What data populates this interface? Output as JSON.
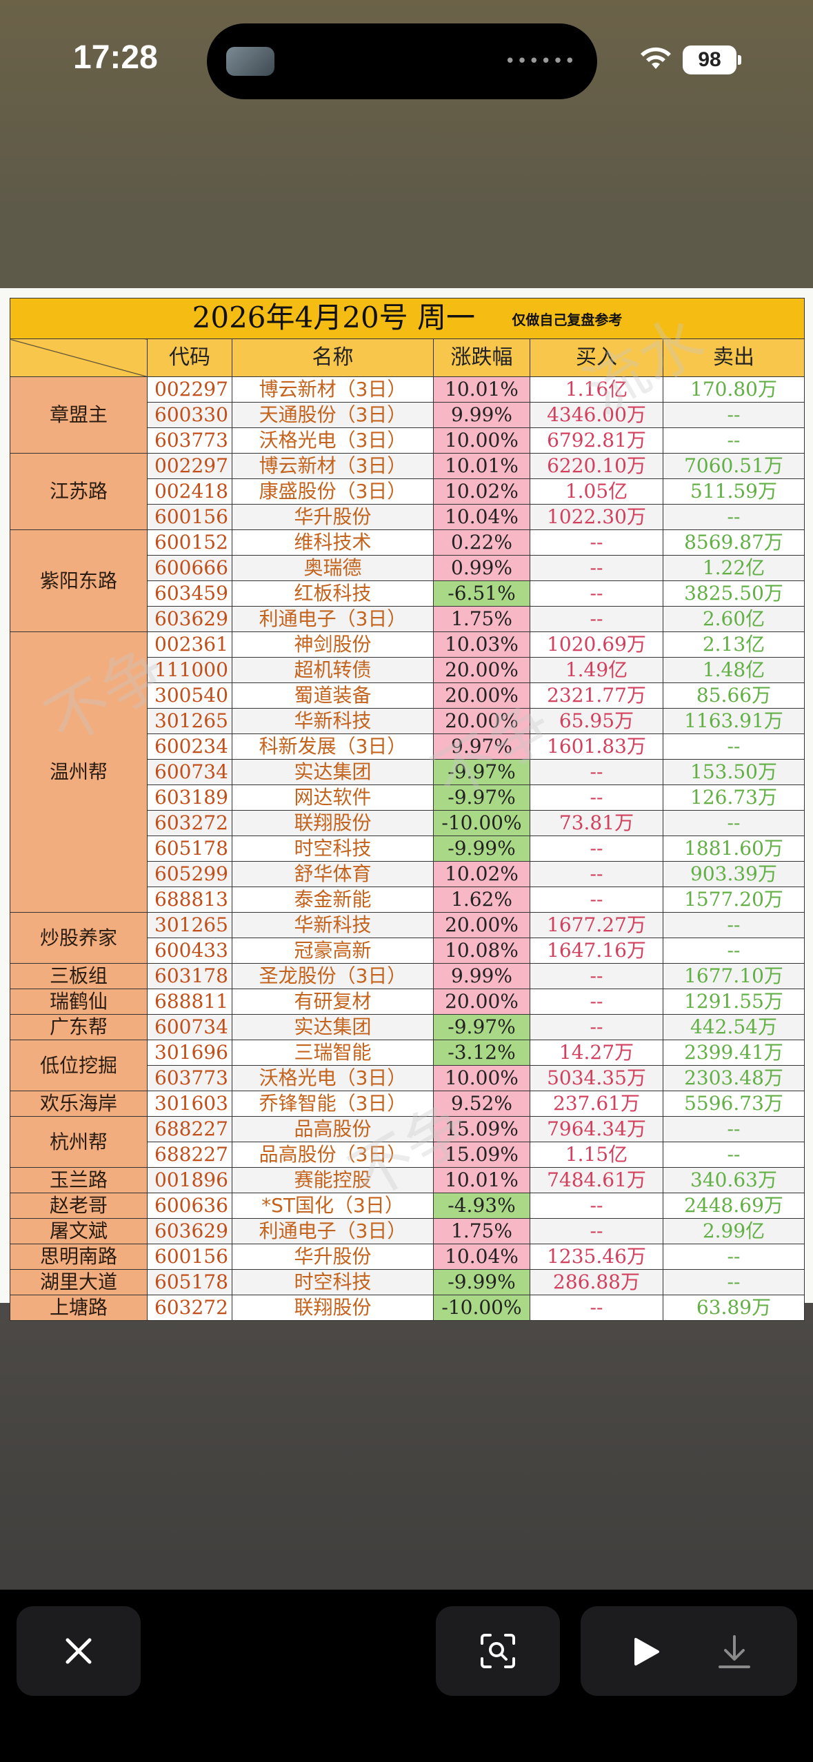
{
  "status_bar": {
    "time": "17:28",
    "battery": "98"
  },
  "sheet": {
    "title": "2026年4月20号 周一",
    "note": "仅做自己复盘参考",
    "headers": [
      "代码",
      "名称",
      "涨跌幅",
      "买入",
      "卖出"
    ]
  },
  "groups": [
    {
      "name": "章盟主",
      "rows": [
        {
          "code": "002297",
          "name": "博云新材（3日）",
          "pct": "10.01%",
          "dir": "up",
          "buy": "1.16亿",
          "sell": "170.80万"
        },
        {
          "code": "600330",
          "name": "天通股份（3日）",
          "pct": "9.99%",
          "dir": "up",
          "buy": "4346.00万",
          "sell": "--"
        },
        {
          "code": "603773",
          "name": "沃格光电（3日）",
          "pct": "10.00%",
          "dir": "up",
          "buy": "6792.81万",
          "sell": "--"
        }
      ]
    },
    {
      "name": "江苏路",
      "rows": [
        {
          "code": "002297",
          "name": "博云新材（3日）",
          "pct": "10.01%",
          "dir": "up",
          "buy": "6220.10万",
          "sell": "7060.51万"
        },
        {
          "code": "002418",
          "name": "康盛股份（3日）",
          "pct": "10.02%",
          "dir": "up",
          "buy": "1.05亿",
          "sell": "511.59万"
        },
        {
          "code": "600156",
          "name": "华升股份",
          "pct": "10.04%",
          "dir": "up",
          "buy": "1022.30万",
          "sell": "--"
        }
      ]
    },
    {
      "name": "紫阳东路",
      "rows": [
        {
          "code": "600152",
          "name": "维科技术",
          "pct": "0.22%",
          "dir": "up",
          "buy": "--",
          "sell": "8569.87万"
        },
        {
          "code": "600666",
          "name": "奥瑞德",
          "pct": "0.99%",
          "dir": "up",
          "buy": "--",
          "sell": "1.22亿"
        },
        {
          "code": "603459",
          "name": "红板科技",
          "pct": "-6.51%",
          "dir": "down",
          "buy": "--",
          "sell": "3825.50万"
        },
        {
          "code": "603629",
          "name": "利通电子（3日）",
          "pct": "1.75%",
          "dir": "up",
          "buy": "--",
          "sell": "2.60亿"
        }
      ]
    },
    {
      "name": "温州帮",
      "rows": [
        {
          "code": "002361",
          "name": "神剑股份",
          "pct": "10.03%",
          "dir": "up",
          "buy": "1020.69万",
          "sell": "2.13亿"
        },
        {
          "code": "111000",
          "name": "超机转债",
          "pct": "20.00%",
          "dir": "up",
          "buy": "1.49亿",
          "sell": "1.48亿"
        },
        {
          "code": "300540",
          "name": "蜀道装备",
          "pct": "20.00%",
          "dir": "up",
          "buy": "2321.77万",
          "sell": "85.66万"
        },
        {
          "code": "301265",
          "name": "华新科技",
          "pct": "20.00%",
          "dir": "up",
          "buy": "65.95万",
          "sell": "1163.91万"
        },
        {
          "code": "600234",
          "name": "科新发展（3日）",
          "pct": "9.97%",
          "dir": "up",
          "buy": "1601.83万",
          "sell": "--"
        },
        {
          "code": "600734",
          "name": "实达集团",
          "pct": "-9.97%",
          "dir": "down",
          "buy": "--",
          "sell": "153.50万"
        },
        {
          "code": "603189",
          "name": "网达软件",
          "pct": "-9.97%",
          "dir": "down",
          "buy": "--",
          "sell": "126.73万"
        },
        {
          "code": "603272",
          "name": "联翔股份",
          "pct": "-10.00%",
          "dir": "down",
          "buy": "73.81万",
          "sell": "--"
        },
        {
          "code": "605178",
          "name": "时空科技",
          "pct": "-9.99%",
          "dir": "down",
          "buy": "--",
          "sell": "1881.60万"
        },
        {
          "code": "605299",
          "name": "舒华体育",
          "pct": "10.02%",
          "dir": "up",
          "buy": "--",
          "sell": "903.39万"
        },
        {
          "code": "688813",
          "name": "泰金新能",
          "pct": "1.62%",
          "dir": "up",
          "buy": "--",
          "sell": "1577.20万"
        }
      ]
    },
    {
      "name": "炒股养家",
      "rows": [
        {
          "code": "301265",
          "name": "华新科技",
          "pct": "20.00%",
          "dir": "up",
          "buy": "1677.27万",
          "sell": "--"
        },
        {
          "code": "600433",
          "name": "冠豪高新",
          "pct": "10.08%",
          "dir": "up",
          "buy": "1647.16万",
          "sell": "--"
        }
      ]
    },
    {
      "name": "三板组",
      "rows": [
        {
          "code": "603178",
          "name": "圣龙股份（3日）",
          "pct": "9.99%",
          "dir": "up",
          "buy": "--",
          "sell": "1677.10万"
        }
      ]
    },
    {
      "name": "瑞鹤仙",
      "rows": [
        {
          "code": "688811",
          "name": "有研复材",
          "pct": "20.00%",
          "dir": "up",
          "buy": "--",
          "sell": "1291.55万"
        }
      ]
    },
    {
      "name": "广东帮",
      "rows": [
        {
          "code": "600734",
          "name": "实达集团",
          "pct": "-9.97%",
          "dir": "down",
          "buy": "--",
          "sell": "442.54万"
        }
      ]
    },
    {
      "name": "低位挖掘",
      "rows": [
        {
          "code": "301696",
          "name": "三瑞智能",
          "pct": "-3.12%",
          "dir": "down",
          "buy": "14.27万",
          "sell": "2399.41万"
        },
        {
          "code": "603773",
          "name": "沃格光电（3日）",
          "pct": "10.00%",
          "dir": "up",
          "buy": "5034.35万",
          "sell": "2303.48万"
        }
      ]
    },
    {
      "name": "欢乐海岸",
      "rows": [
        {
          "code": "301603",
          "name": "乔锋智能（3日）",
          "pct": "9.52%",
          "dir": "up",
          "buy": "237.61万",
          "sell": "5596.73万"
        }
      ]
    },
    {
      "name": "杭州帮",
      "rows": [
        {
          "code": "688227",
          "name": "品高股份",
          "pct": "15.09%",
          "dir": "up",
          "buy": "7964.34万",
          "sell": "--"
        },
        {
          "code": "688227",
          "name": "品高股份（3日）",
          "pct": "15.09%",
          "dir": "up",
          "buy": "1.15亿",
          "sell": "--"
        }
      ]
    },
    {
      "name": "玉兰路",
      "rows": [
        {
          "code": "001896",
          "name": "赛能控股",
          "pct": "10.01%",
          "dir": "up",
          "buy": "7484.61万",
          "sell": "340.63万"
        }
      ]
    },
    {
      "name": "赵老哥",
      "rows": [
        {
          "code": "600636",
          "name": "*ST国化（3日）",
          "pct": "-4.93%",
          "dir": "down",
          "buy": "--",
          "sell": "2448.69万"
        }
      ]
    },
    {
      "name": "屠文斌",
      "rows": [
        {
          "code": "603629",
          "name": "利通电子（3日）",
          "pct": "1.75%",
          "dir": "up",
          "buy": "--",
          "sell": "2.99亿"
        }
      ]
    },
    {
      "name": "思明南路",
      "rows": [
        {
          "code": "600156",
          "name": "华升股份",
          "pct": "10.04%",
          "dir": "up",
          "buy": "1235.46万",
          "sell": "--"
        }
      ]
    },
    {
      "name": "湖里大道",
      "rows": [
        {
          "code": "605178",
          "name": "时空科技",
          "pct": "-9.99%",
          "dir": "down",
          "buy": "286.88万",
          "sell": "--"
        }
      ]
    },
    {
      "name": "上塘路",
      "rows": [
        {
          "code": "603272",
          "name": "联翔股份",
          "pct": "-10.00%",
          "dir": "down",
          "buy": "--",
          "sell": "63.89万"
        }
      ]
    }
  ],
  "toolbar": {
    "close_icon": "close-icon",
    "lens_icon": "visual-lookup-icon",
    "play_icon": "play-icon",
    "download_icon": "download-icon"
  }
}
